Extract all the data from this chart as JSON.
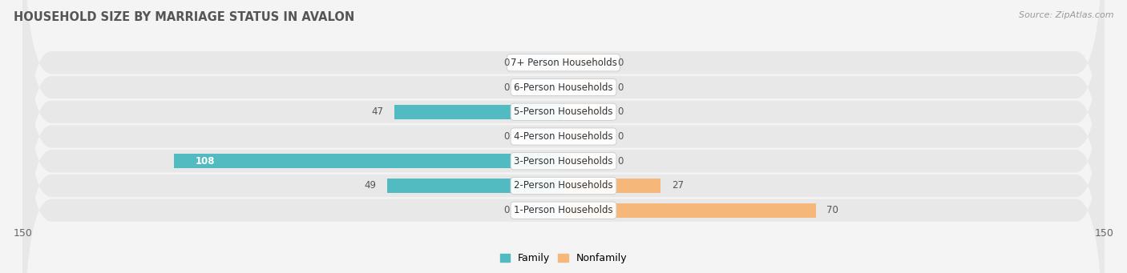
{
  "title": "HOUSEHOLD SIZE BY MARRIAGE STATUS IN AVALON",
  "source": "Source: ZipAtlas.com",
  "categories": [
    "7+ Person Households",
    "6-Person Households",
    "5-Person Households",
    "4-Person Households",
    "3-Person Households",
    "2-Person Households",
    "1-Person Households"
  ],
  "family_values": [
    0,
    0,
    47,
    0,
    108,
    49,
    0
  ],
  "nonfamily_values": [
    0,
    0,
    0,
    0,
    0,
    27,
    70
  ],
  "family_color": "#52BAC1",
  "nonfamily_color": "#F5B87A",
  "family_color_light": "#A8D8DB",
  "nonfamily_color_light": "#F5D4B0",
  "row_bg_color": "#E8E8E8",
  "fig_bg_color": "#F4F4F4",
  "xlim": 150,
  "stub_size": 12,
  "bar_height": 0.58,
  "title_fontsize": 10.5,
  "label_fontsize": 8.5,
  "value_fontsize": 8.5,
  "tick_fontsize": 9,
  "source_fontsize": 8,
  "title_color": "#555555",
  "value_color": "#555555",
  "source_color": "#999999"
}
